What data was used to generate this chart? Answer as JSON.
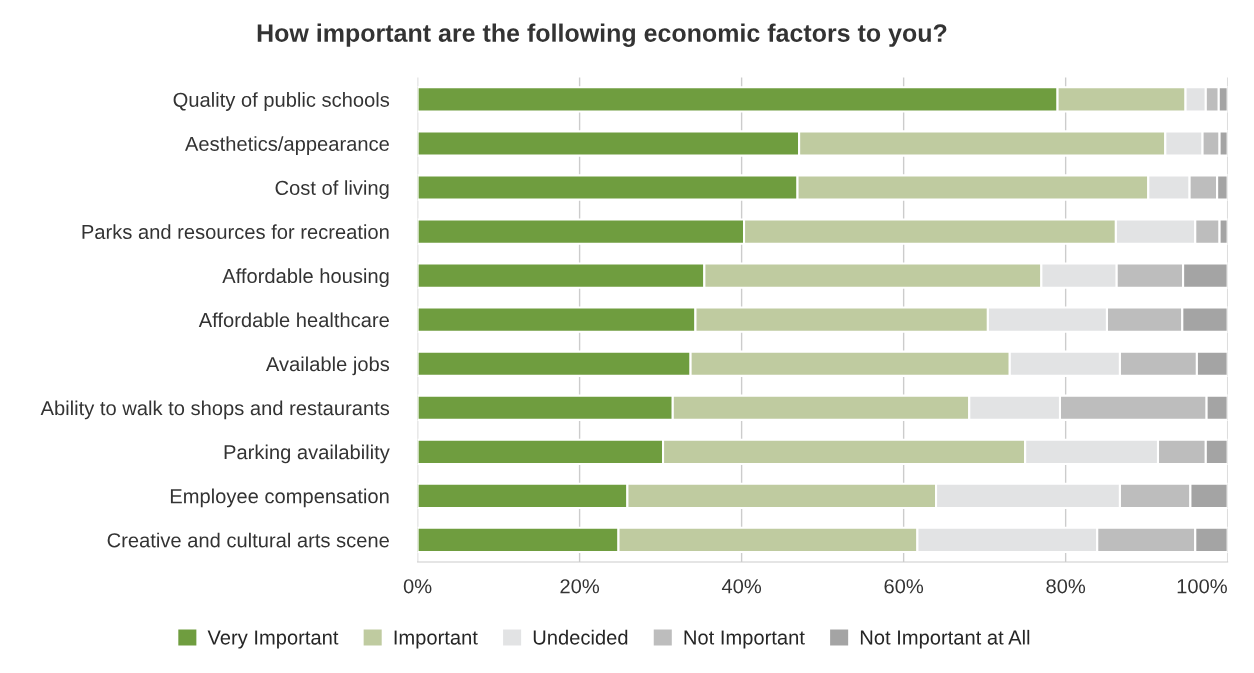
{
  "chart_data": {
    "type": "bar",
    "orientation": "horizontal",
    "stacked": true,
    "title": "How important are the following economic factors to you?",
    "categories": [
      "Quality of public schools",
      "Aesthetics/appearance",
      "Cost of living",
      "Parks and resources for recreation",
      "Affordable housing",
      "Affordable healthcare",
      "Available jobs",
      "Ability to walk to shops and restaurants",
      "Parking availability",
      "Employee compensation",
      "Creative and cultural arts scene"
    ],
    "series": [
      {
        "name": "Very Important",
        "color": "#6f9d3f",
        "values": [
          79.0,
          47.1,
          46.9,
          40.3,
          35.4,
          34.3,
          33.7,
          31.5,
          30.3,
          25.9,
          24.8
        ]
      },
      {
        "name": "Important",
        "color": "#bfcba0",
        "values": [
          15.8,
          45.2,
          43.3,
          45.9,
          41.6,
          36.1,
          39.4,
          36.6,
          44.7,
          38.1,
          36.9
        ]
      },
      {
        "name": "Undecided",
        "color": "#e2e3e4",
        "values": [
          2.5,
          4.6,
          5.1,
          9.8,
          9.3,
          14.7,
          13.6,
          11.2,
          16.4,
          22.7,
          22.2
        ]
      },
      {
        "name": "Not Important",
        "color": "#bdbdbd",
        "values": [
          1.6,
          2.1,
          3.4,
          3.0,
          8.2,
          9.3,
          9.5,
          18.1,
          5.9,
          8.7,
          12.1
        ]
      },
      {
        "name": "Not Important at All",
        "color": "#a4a4a4",
        "values": [
          1.1,
          1.0,
          1.3,
          1.0,
          5.5,
          5.6,
          3.8,
          2.6,
          2.7,
          4.6,
          4.0
        ]
      }
    ],
    "xlim": [
      0,
      100
    ],
    "xticks": [
      {
        "value": 0,
        "label": "0%"
      },
      {
        "value": 20,
        "label": "20%"
      },
      {
        "value": 40,
        "label": "40%"
      },
      {
        "value": 60,
        "label": "60%"
      },
      {
        "value": 80,
        "label": "80%"
      },
      {
        "value": 100,
        "label": "100%"
      }
    ],
    "grid": "x",
    "legend": "bottom"
  }
}
